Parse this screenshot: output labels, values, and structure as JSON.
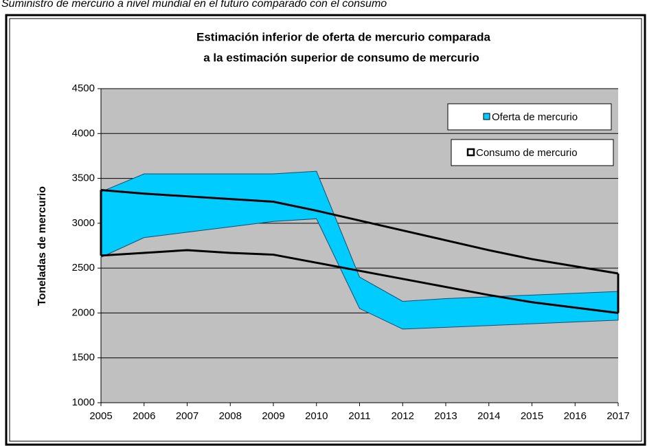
{
  "chart_data": {
    "type": "band",
    "caption": "Suministro de mercurio a nivel mundial en el futuro comparado con el consumo",
    "title": [
      "Estimación inferior de oferta de mercurio comparada",
      "a la estimación superior de consumo de mercurio"
    ],
    "y_label": "Toneladas de mercurio",
    "categories": [
      "2005",
      "2006",
      "2007",
      "2008",
      "2009",
      "2010",
      "2011",
      "2012",
      "2013",
      "2014",
      "2015",
      "2016",
      "2017"
    ],
    "series": [
      {
        "name": "Oferta de mercurio",
        "color": "#00ccff",
        "values": [
          3350,
          3550,
          3550,
          3550,
          3550,
          3580,
          2400,
          2130,
          2160,
          2180,
          2200,
          2220,
          2240
        ],
        "lower": [
          2620,
          2840,
          2900,
          2960,
          3020,
          3050,
          2050,
          1820,
          1840,
          1860,
          1880,
          1900,
          1920
        ]
      },
      {
        "name": "Consumo de mercurio",
        "color": "#000000",
        "values": [
          3370,
          3330,
          3300,
          3270,
          3240,
          3140,
          3030,
          2920,
          2810,
          2700,
          2600,
          2520,
          2440
        ],
        "lower": [
          2640,
          2670,
          2700,
          2670,
          2650,
          2560,
          2470,
          2380,
          2290,
          2200,
          2120,
          2060,
          2000
        ]
      }
    ],
    "ylim": [
      1000,
      4500
    ],
    "yticks": [
      1000,
      1500,
      2000,
      2500,
      3000,
      3500,
      4000,
      4500
    ],
    "grid": true,
    "legend": "upper right"
  }
}
